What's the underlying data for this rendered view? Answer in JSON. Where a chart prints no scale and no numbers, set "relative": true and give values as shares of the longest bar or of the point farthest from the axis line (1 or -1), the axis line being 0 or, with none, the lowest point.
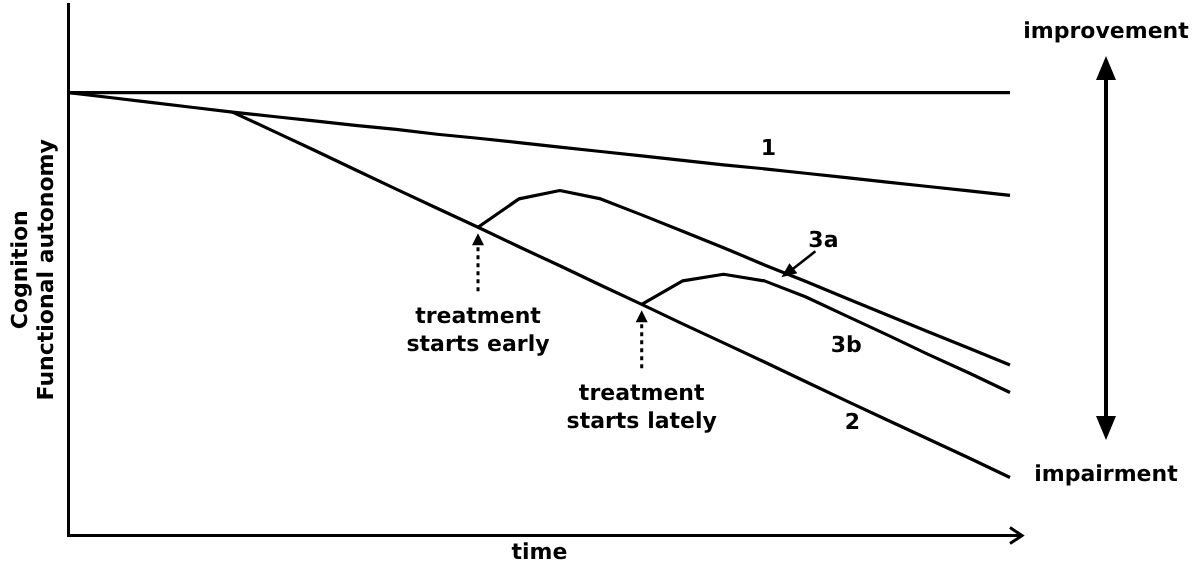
{
  "chart_data": {
    "type": "line",
    "relative": true,
    "legend": false,
    "xlabel": "time",
    "ylabel": "Cognition\nFunctional autonomy",
    "categories": [
      null,
      null,
      null,
      null,
      null,
      null,
      null,
      null,
      null,
      null,
      null,
      null,
      null,
      null,
      null,
      null,
      null,
      null,
      null,
      null,
      null,
      null,
      null,
      null
    ],
    "series": [
      {
        "color": "#000000",
        "values": [
          1,
          1,
          1,
          1,
          1,
          1,
          1,
          1,
          1,
          1,
          1,
          1,
          1,
          1,
          1,
          1,
          1,
          1,
          1,
          1,
          1,
          1,
          1,
          1
        ]
      },
      {
        "name": "1",
        "color": "#000000",
        "values": [
          1,
          0.989,
          0.978,
          0.967,
          0.956,
          0.946,
          0.936,
          0.926,
          0.917,
          0.906,
          0.897,
          0.887,
          0.877,
          0.867,
          0.857,
          0.847,
          0.837,
          0.828,
          0.818,
          0.808,
          0.798,
          0.788,
          0.778,
          0.768
        ]
      },
      {
        "name": "2",
        "color": "#000000",
        "values": [
          null,
          null,
          null,
          null,
          0.956,
          0.913,
          0.87,
          0.826,
          0.782,
          0.739,
          0.696,
          0.652,
          0.609,
          0.565,
          0.522,
          0.478,
          0.435,
          0.392,
          0.348,
          0.304,
          0.261,
          0.218,
          0.175,
          0.131
        ]
      },
      {
        "name": "3a",
        "color": "#000000",
        "values": [
          null,
          null,
          null,
          null,
          null,
          null,
          null,
          null,
          null,
          null,
          0.696,
          0.76,
          0.779,
          0.76,
          0.724,
          0.687,
          0.65,
          0.611,
          0.574,
          0.536,
          0.498,
          0.46,
          0.423,
          0.385
        ]
      },
      {
        "name": "3b",
        "color": "#000000",
        "values": [
          null,
          null,
          null,
          null,
          null,
          null,
          null,
          null,
          null,
          null,
          null,
          null,
          null,
          null,
          0.522,
          0.575,
          0.59,
          0.575,
          0.539,
          0.496,
          0.453,
          0.409,
          0.367,
          0.323
        ]
      }
    ],
    "annotations": [
      "treatment\nstarts early",
      "treatment\nstarts lately",
      "improvement",
      "impairment"
    ]
  }
}
